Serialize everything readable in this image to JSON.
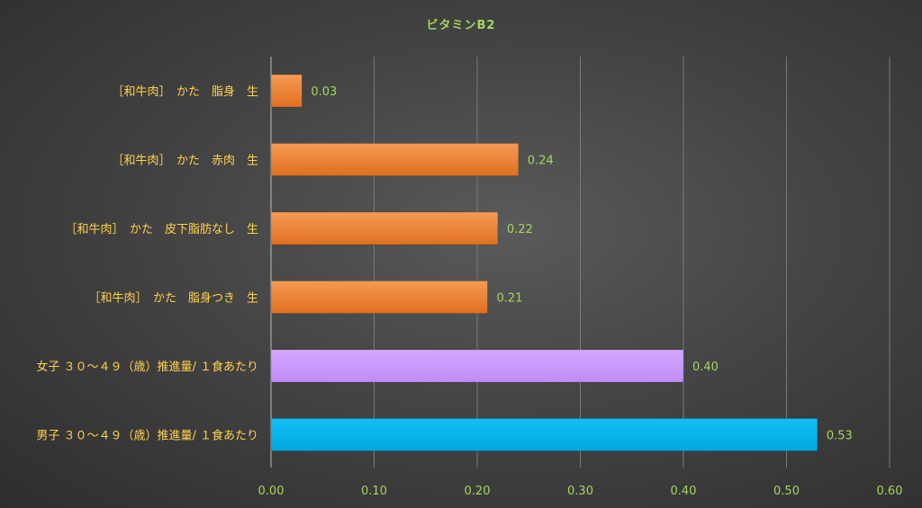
{
  "chart_data": {
    "type": "bar",
    "orientation": "horizontal",
    "title": "ビタミンB2",
    "xlabel": "",
    "ylabel": "",
    "xlim": [
      0,
      0.6
    ],
    "ticks": [
      "0.00",
      "0.10",
      "0.20",
      "0.30",
      "0.40",
      "0.50",
      "0.60"
    ],
    "tick_values": [
      0,
      0.1,
      0.2,
      0.3,
      0.4,
      0.5,
      0.6
    ],
    "grid": true,
    "legend": "none",
    "categories": [
      "［和牛肉］　かた　脂身　生",
      "［和牛肉］　かた　赤肉　生",
      "［和牛肉］　かた　皮下脂肪なし　生",
      "［和牛肉］　かた　脂身つき　生",
      "女子 ３０～４９（歳）推進量/ １食あたり",
      "男子 ３０～４９（歳）推進量/ １食あたり"
    ],
    "values": [
      0.03,
      0.24,
      0.22,
      0.21,
      0.4,
      0.53
    ],
    "value_labels": [
      "0.03",
      "0.24",
      "0.22",
      "0.21",
      "0.40",
      "0.53"
    ],
    "bar_colors": [
      "#ed7d31",
      "#ed7d31",
      "#ed7d31",
      "#ed7d31",
      "#cc99ff",
      "#00b0f0"
    ]
  }
}
